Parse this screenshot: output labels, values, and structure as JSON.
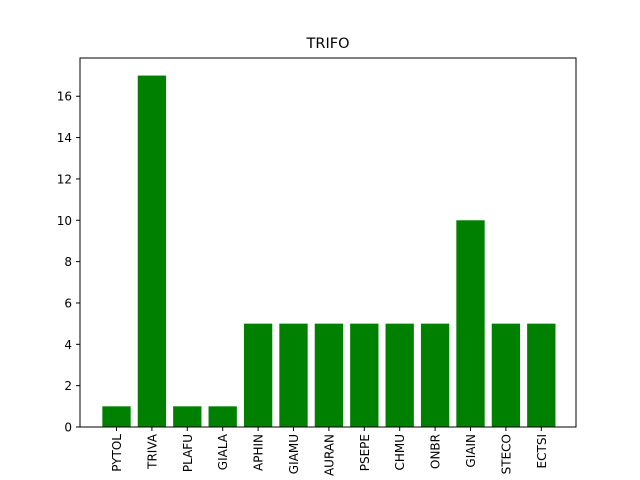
{
  "chart_data": {
    "type": "bar",
    "title": "TRIFO",
    "xlabel": "",
    "ylabel": "",
    "categories": [
      "PYTOL",
      "TRIVA",
      "PLAFU",
      "GIALA",
      "APHIN",
      "GIAMU",
      "AURAN",
      "PSEPE",
      "CHMU",
      "ONBR",
      "GIAIN",
      "STECO",
      "ECTSI"
    ],
    "values": [
      1,
      17,
      1,
      1,
      5,
      5,
      5,
      5,
      5,
      5,
      10,
      5,
      5
    ],
    "ylim": [
      0,
      17.85
    ],
    "yticks": [
      0,
      2,
      4,
      6,
      8,
      10,
      12,
      14,
      16
    ],
    "bar_color": "#008000",
    "grid": false,
    "tick_label_rotation": 90
  }
}
